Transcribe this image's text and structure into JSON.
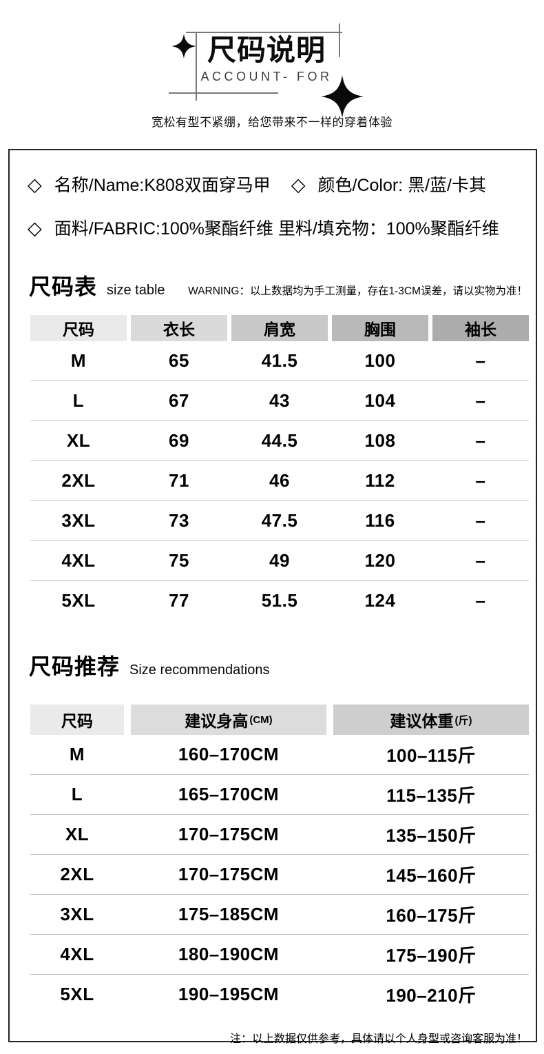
{
  "header": {
    "title": "尺码说明",
    "subtitle": "ACCOUNT- FOR",
    "tagline": "宽松有型不紧绷，给您带来不一样的穿着体验"
  },
  "product_info": {
    "line1": [
      {
        "bullet": "◇",
        "text": "名称/Name:K808双面穿马甲"
      },
      {
        "bullet": "◇",
        "text": "颜色/Color: 黑/蓝/卡其"
      }
    ],
    "line2": [
      {
        "bullet": "◇",
        "text": "面料/FABRIC:100%聚酯纤维 里料/填充物：100%聚酯纤维"
      }
    ]
  },
  "size_table": {
    "heading": "尺码表",
    "heading_en": "size table",
    "warning": "WARNING：以上数据均为手工测量，存在1-3CM误差，请以实物为准！",
    "columns": [
      "尺码",
      "衣长",
      "肩宽",
      "胸围",
      "袖长"
    ],
    "header_colors": [
      "#eaeaea",
      "#dadada",
      "#c8c8c8",
      "#b9b9b9",
      "#acacac"
    ],
    "rows": [
      [
        "M",
        "65",
        "41.5",
        "100",
        "–"
      ],
      [
        "L",
        "67",
        "43",
        "104",
        "–"
      ],
      [
        "XL",
        "69",
        "44.5",
        "108",
        "–"
      ],
      [
        "2XL",
        "71",
        "46",
        "112",
        "–"
      ],
      [
        "3XL",
        "73",
        "47.5",
        "116",
        "–"
      ],
      [
        "4XL",
        "75",
        "49",
        "120",
        "–"
      ],
      [
        "5XL",
        "77",
        "51.5",
        "124",
        "–"
      ]
    ]
  },
  "recommend_table": {
    "heading": "尺码推荐",
    "heading_en": "Size recommendations",
    "columns": [
      {
        "label": "尺码",
        "unit": ""
      },
      {
        "label": "建议身高",
        "unit": "(CM)"
      },
      {
        "label": "建议体重",
        "unit": "(斤)"
      }
    ],
    "header_colors": [
      "#eaeaea",
      "#dcdcdc",
      "#cecece"
    ],
    "rows": [
      [
        "M",
        "160–170CM",
        "100–115斤"
      ],
      [
        "L",
        "165–170CM",
        "115–135斤"
      ],
      [
        "XL",
        "170–175CM",
        "135–150斤"
      ],
      [
        "2XL",
        "170–175CM",
        "145–160斤"
      ],
      [
        "3XL",
        "175–185CM",
        "160–175斤"
      ],
      [
        "4XL",
        "180–190CM",
        "175–190斤"
      ],
      [
        "5XL",
        "190–195CM",
        "190–210斤"
      ]
    ]
  },
  "footer_note": "注：以上数据仅供参考，具体请以个人身型或咨询客服为准！"
}
